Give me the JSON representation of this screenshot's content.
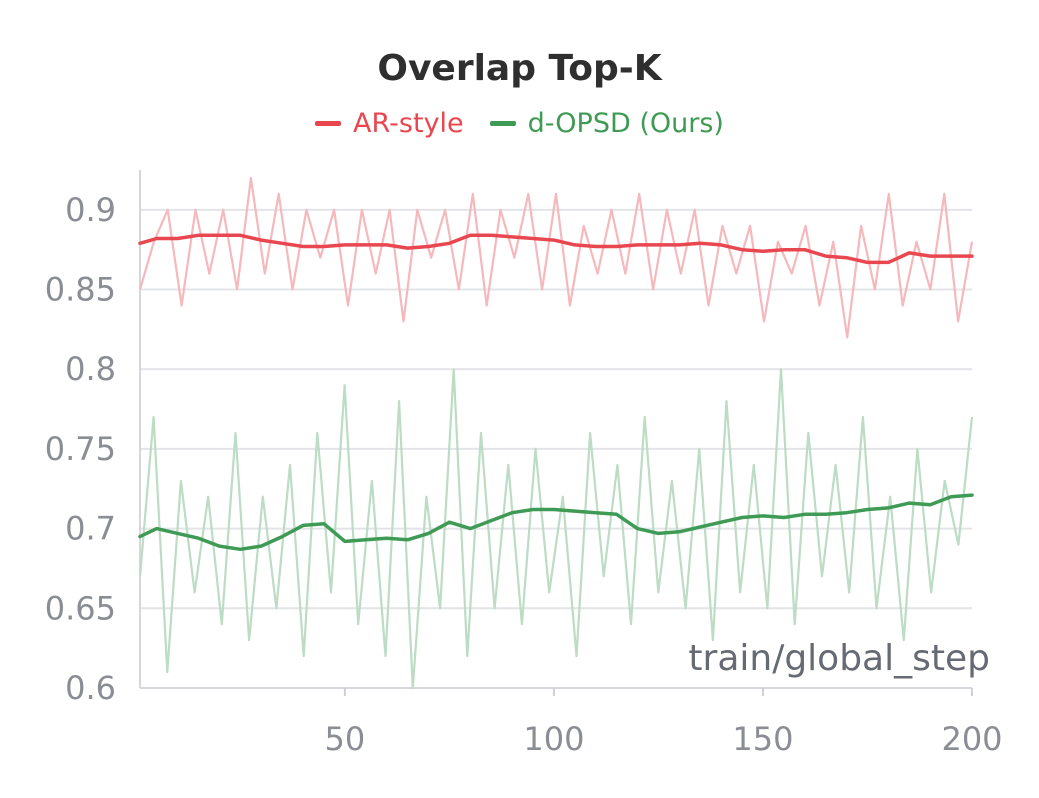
{
  "chart_data": {
    "type": "line",
    "title": "Overlap Top-K",
    "xlabel": "train/global_step",
    "ylabel": "",
    "xlim": [
      1,
      200
    ],
    "ylim": [
      0.6,
      0.925
    ],
    "xticks": [
      50,
      100,
      150,
      200
    ],
    "yticks": [
      0.6,
      0.65,
      0.7,
      0.75,
      0.8,
      0.85,
      0.9
    ],
    "xtick_labels": [
      "50",
      "100",
      "150",
      "200"
    ],
    "ytick_labels": [
      "0.6",
      "0.65",
      "0.7",
      "0.75",
      "0.8",
      "0.85",
      "0.9"
    ],
    "grid": true,
    "legend": "top-center",
    "series": [
      {
        "name": "AR-style",
        "color": "#e8474f",
        "raw_color": "#f5b8bc",
        "smoothed": {
          "x": [
            1,
            5,
            10,
            15,
            20,
            25,
            30,
            35,
            40,
            45,
            50,
            55,
            60,
            65,
            70,
            75,
            80,
            85,
            90,
            95,
            100,
            105,
            110,
            115,
            120,
            125,
            130,
            135,
            140,
            145,
            150,
            155,
            160,
            165,
            170,
            175,
            180,
            185,
            190,
            195,
            200
          ],
          "y": [
            0.879,
            0.882,
            0.882,
            0.884,
            0.884,
            0.884,
            0.881,
            0.879,
            0.877,
            0.877,
            0.878,
            0.878,
            0.878,
            0.876,
            0.877,
            0.879,
            0.884,
            0.884,
            0.883,
            0.882,
            0.881,
            0.878,
            0.877,
            0.877,
            0.878,
            0.878,
            0.878,
            0.879,
            0.878,
            0.875,
            0.874,
            0.875,
            0.875,
            0.871,
            0.87,
            0.867,
            0.867,
            0.873,
            0.871,
            0.871,
            0.871
          ]
        },
        "raw_y_sample": [
          0.85,
          0.88,
          0.9,
          0.84,
          0.9,
          0.86,
          0.9,
          0.85,
          0.92,
          0.86,
          0.91,
          0.85,
          0.9,
          0.87,
          0.9,
          0.84,
          0.9,
          0.86,
          0.9,
          0.83,
          0.9,
          0.87,
          0.9,
          0.85,
          0.91,
          0.84,
          0.9,
          0.87,
          0.91,
          0.85,
          0.91,
          0.84,
          0.89,
          0.86,
          0.9,
          0.86,
          0.91,
          0.85,
          0.9,
          0.86,
          0.9,
          0.84,
          0.89,
          0.86,
          0.89,
          0.83,
          0.88,
          0.86,
          0.89,
          0.84,
          0.88,
          0.82,
          0.89,
          0.85,
          0.91,
          0.84,
          0.88,
          0.85,
          0.91,
          0.83,
          0.88
        ]
      },
      {
        "name": "d-OPSD (Ours)",
        "color": "#3f9a55",
        "raw_color": "#bcdcc4",
        "smoothed": {
          "x": [
            1,
            5,
            10,
            15,
            20,
            25,
            30,
            35,
            40,
            45,
            50,
            55,
            60,
            65,
            70,
            75,
            80,
            85,
            90,
            95,
            100,
            105,
            110,
            115,
            120,
            125,
            130,
            135,
            140,
            145,
            150,
            155,
            160,
            165,
            170,
            175,
            180,
            185,
            190,
            195,
            200
          ],
          "y": [
            0.695,
            0.7,
            0.697,
            0.694,
            0.689,
            0.687,
            0.689,
            0.695,
            0.702,
            0.703,
            0.692,
            0.693,
            0.694,
            0.693,
            0.697,
            0.704,
            0.7,
            0.705,
            0.71,
            0.712,
            0.712,
            0.711,
            0.71,
            0.709,
            0.7,
            0.697,
            0.698,
            0.701,
            0.704,
            0.707,
            0.708,
            0.707,
            0.709,
            0.709,
            0.71,
            0.712,
            0.713,
            0.716,
            0.715,
            0.72,
            0.721
          ]
        },
        "raw_y_sample": [
          0.67,
          0.77,
          0.61,
          0.73,
          0.66,
          0.72,
          0.64,
          0.76,
          0.63,
          0.72,
          0.65,
          0.74,
          0.62,
          0.76,
          0.66,
          0.79,
          0.64,
          0.73,
          0.62,
          0.78,
          0.6,
          0.72,
          0.65,
          0.8,
          0.62,
          0.76,
          0.65,
          0.74,
          0.64,
          0.75,
          0.66,
          0.72,
          0.62,
          0.76,
          0.67,
          0.74,
          0.64,
          0.77,
          0.66,
          0.73,
          0.65,
          0.75,
          0.63,
          0.78,
          0.66,
          0.74,
          0.65,
          0.8,
          0.64,
          0.76,
          0.67,
          0.74,
          0.66,
          0.77,
          0.65,
          0.72,
          0.63,
          0.75,
          0.66,
          0.73,
          0.69,
          0.77
        ]
      }
    ]
  }
}
